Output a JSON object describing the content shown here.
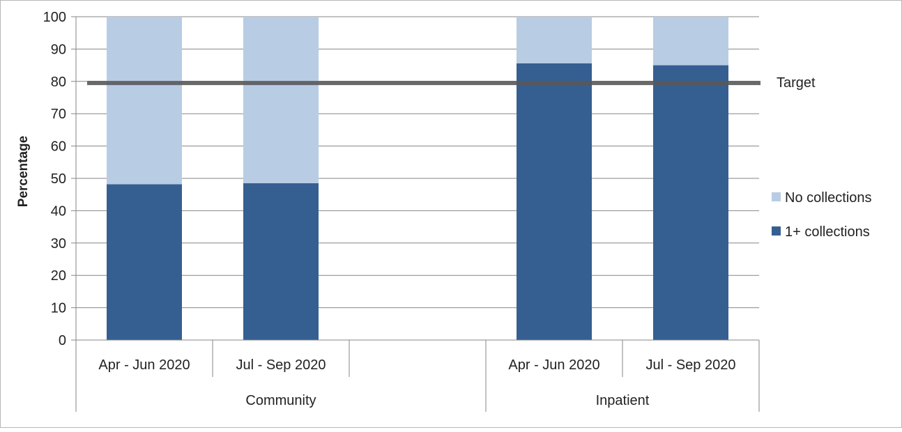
{
  "chart_data": {
    "type": "bar",
    "stacked": true,
    "percent": true,
    "groups": [
      {
        "label": "Community",
        "categories": [
          "Apr - Jun 2020",
          "Jul - Sep 2020",
          ""
        ]
      },
      {
        "label": "Inpatient",
        "categories": [
          "Apr - Jun 2020",
          "Jul - Sep 2020"
        ]
      }
    ],
    "categories": [
      "Apr - Jun 2020",
      "Jul - Sep 2020",
      "",
      "Apr - Jun 2020",
      "Jul - Sep 2020"
    ],
    "series": [
      {
        "name": "1+ collections",
        "color": "#365f91",
        "values": [
          48.2,
          48.5,
          null,
          85.6,
          85.0
        ]
      },
      {
        "name": "No collections",
        "color": "#b8cce4",
        "values": [
          51.8,
          51.5,
          null,
          14.4,
          15.0
        ]
      }
    ],
    "target": {
      "label": "Target",
      "value": 79.5,
      "color": "#595959"
    },
    "ylabel": "Percentage",
    "xlabel": "",
    "title": "",
    "ylim": [
      0,
      100
    ],
    "yticks": [
      0,
      10,
      20,
      30,
      40,
      50,
      60,
      70,
      80,
      90,
      100
    ],
    "grid": true,
    "legend_position": "right",
    "legend_order": [
      "No collections",
      "1+ collections"
    ]
  }
}
